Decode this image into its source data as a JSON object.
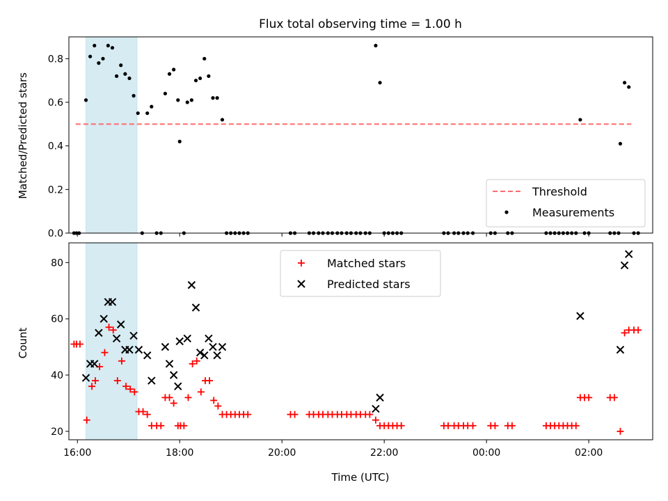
{
  "figure": {
    "title": "Flux total observing time = 1.00 h",
    "xlabel": "Time (UTC)",
    "xticks": [
      "16:00",
      "18:00",
      "20:00",
      "22:00",
      "00:00",
      "02:00"
    ]
  },
  "colors": {
    "threshold": "#ff6b6b",
    "measurement": "#000000",
    "matched": "#ff0000",
    "predicted": "#000000",
    "band": "#add8e6"
  },
  "chart_data": [
    {
      "type": "scatter",
      "ylabel": "Matched/Predicted stars",
      "xlim": [
        "15:50",
        "03:15"
      ],
      "ylim": [
        0,
        0.9
      ],
      "yticks": [
        "0.0",
        "0.2",
        "0.4",
        "0.6",
        "0.8"
      ],
      "highlight_interval": [
        "16:10",
        "17:10"
      ],
      "legend_position": "lower-right",
      "threshold": {
        "name": "Threshold",
        "style": "dashed",
        "y": 0.5,
        "x_start": "15:58",
        "x_end": "02:50"
      },
      "series": [
        {
          "name": "Measurements",
          "points": [
            [
              "15:56",
              0
            ],
            [
              "15:59",
              0
            ],
            [
              "16:02",
              0
            ],
            [
              "16:10",
              0.61
            ],
            [
              "16:15",
              0.81
            ],
            [
              "16:20",
              0.86
            ],
            [
              "16:25",
              0.78
            ],
            [
              "16:30",
              0.8
            ],
            [
              "16:36",
              0.86
            ],
            [
              "16:41",
              0.85
            ],
            [
              "16:46",
              0.72
            ],
            [
              "16:51",
              0.77
            ],
            [
              "16:56",
              0.73
            ],
            [
              "17:01",
              0.71
            ],
            [
              "17:06",
              0.63
            ],
            [
              "17:11",
              0.55
            ],
            [
              "17:16",
              0
            ],
            [
              "17:22",
              0.55
            ],
            [
              "17:27",
              0.58
            ],
            [
              "17:33",
              0
            ],
            [
              "17:38",
              0
            ],
            [
              "17:43",
              0.64
            ],
            [
              "17:48",
              0.73
            ],
            [
              "17:53",
              0.75
            ],
            [
              "17:58",
              0.61
            ],
            [
              "18:00",
              0.42
            ],
            [
              "18:05",
              0
            ],
            [
              "18:09",
              0.6
            ],
            [
              "18:14",
              0.61
            ],
            [
              "18:19",
              0.7
            ],
            [
              "18:24",
              0.71
            ],
            [
              "18:29",
              0.8
            ],
            [
              "18:34",
              0.72
            ],
            [
              "18:39",
              0.62
            ],
            [
              "18:44",
              0.62
            ],
            [
              "18:50",
              0.52
            ],
            [
              "18:55",
              0
            ],
            [
              "19:00",
              0
            ],
            [
              "19:05",
              0
            ],
            [
              "19:10",
              0
            ],
            [
              "19:15",
              0
            ],
            [
              "19:20",
              0
            ],
            [
              "20:10",
              0
            ],
            [
              "20:15",
              0
            ],
            [
              "20:32",
              0
            ],
            [
              "20:37",
              0
            ],
            [
              "20:43",
              0
            ],
            [
              "20:48",
              0
            ],
            [
              "20:54",
              0
            ],
            [
              "20:59",
              0
            ],
            [
              "21:05",
              0
            ],
            [
              "21:10",
              0
            ],
            [
              "21:16",
              0
            ],
            [
              "21:21",
              0
            ],
            [
              "21:27",
              0
            ],
            [
              "21:32",
              0
            ],
            [
              "21:38",
              0
            ],
            [
              "21:43",
              0
            ],
            [
              "21:50",
              0.86
            ],
            [
              "21:55",
              0.69
            ],
            [
              "22:00",
              0
            ],
            [
              "22:05",
              0
            ],
            [
              "22:10",
              0
            ],
            [
              "22:15",
              0
            ],
            [
              "22:20",
              0
            ],
            [
              "23:10",
              0
            ],
            [
              "23:15",
              0
            ],
            [
              "23:22",
              0
            ],
            [
              "23:27",
              0
            ],
            [
              "23:33",
              0
            ],
            [
              "23:38",
              0
            ],
            [
              "23:44",
              0
            ],
            [
              "00:05",
              0
            ],
            [
              "00:10",
              0
            ],
            [
              "00:25",
              0
            ],
            [
              "00:30",
              0
            ],
            [
              "01:10",
              0
            ],
            [
              "01:15",
              0
            ],
            [
              "01:20",
              0
            ],
            [
              "01:25",
              0
            ],
            [
              "01:30",
              0
            ],
            [
              "01:35",
              0
            ],
            [
              "01:40",
              0
            ],
            [
              "01:45",
              0
            ],
            [
              "01:50",
              0.52
            ],
            [
              "01:55",
              0
            ],
            [
              "02:00",
              0
            ],
            [
              "02:25",
              0
            ],
            [
              "02:30",
              0
            ],
            [
              "02:35",
              0
            ],
            [
              "02:37",
              0.41
            ],
            [
              "02:42",
              0.69
            ],
            [
              "02:47",
              0.67
            ],
            [
              "02:53",
              0
            ],
            [
              "02:58",
              0
            ]
          ]
        }
      ]
    },
    {
      "type": "scatter",
      "ylabel": "Count",
      "xlim": [
        "15:50",
        "03:15"
      ],
      "ylim": [
        17,
        87
      ],
      "yticks": [
        "20",
        "40",
        "60",
        "80"
      ],
      "highlight_interval": [
        "16:10",
        "17:10"
      ],
      "legend_position": "upper-center",
      "series": [
        {
          "name": "Matched stars",
          "marker": "plus",
          "points": [
            [
              "15:56",
              51
            ],
            [
              "15:59",
              51
            ],
            [
              "16:03",
              51
            ],
            [
              "16:11",
              24
            ],
            [
              "16:17",
              36
            ],
            [
              "16:21",
              38
            ],
            [
              "16:26",
              43
            ],
            [
              "16:32",
              48
            ],
            [
              "16:37",
              57
            ],
            [
              "16:42",
              56
            ],
            [
              "16:47",
              38
            ],
            [
              "16:52",
              45
            ],
            [
              "16:57",
              36
            ],
            [
              "17:02",
              35
            ],
            [
              "17:07",
              34
            ],
            [
              "17:12",
              27
            ],
            [
              "17:17",
              27
            ],
            [
              "17:22",
              26
            ],
            [
              "17:27",
              22
            ],
            [
              "17:33",
              22
            ],
            [
              "17:38",
              22
            ],
            [
              "17:43",
              32
            ],
            [
              "17:48",
              32
            ],
            [
              "17:53",
              30
            ],
            [
              "17:58",
              22
            ],
            [
              "18:01",
              22
            ],
            [
              "18:05",
              22
            ],
            [
              "18:10",
              32
            ],
            [
              "18:15",
              44
            ],
            [
              "18:20",
              45
            ],
            [
              "18:25",
              34
            ],
            [
              "18:30",
              38
            ],
            [
              "18:35",
              38
            ],
            [
              "18:40",
              31
            ],
            [
              "18:45",
              29
            ],
            [
              "18:50",
              26
            ],
            [
              "18:55",
              26
            ],
            [
              "19:00",
              26
            ],
            [
              "19:05",
              26
            ],
            [
              "19:10",
              26
            ],
            [
              "19:15",
              26
            ],
            [
              "19:20",
              26
            ],
            [
              "20:10",
              26
            ],
            [
              "20:15",
              26
            ],
            [
              "20:32",
              26
            ],
            [
              "20:37",
              26
            ],
            [
              "20:43",
              26
            ],
            [
              "20:48",
              26
            ],
            [
              "20:54",
              26
            ],
            [
              "20:59",
              26
            ],
            [
              "21:05",
              26
            ],
            [
              "21:10",
              26
            ],
            [
              "21:16",
              26
            ],
            [
              "21:21",
              26
            ],
            [
              "21:27",
              26
            ],
            [
              "21:32",
              26
            ],
            [
              "21:38",
              26
            ],
            [
              "21:43",
              26
            ],
            [
              "21:50",
              24
            ],
            [
              "21:55",
              22
            ],
            [
              "22:00",
              22
            ],
            [
              "22:05",
              22
            ],
            [
              "22:10",
              22
            ],
            [
              "22:15",
              22
            ],
            [
              "22:20",
              22
            ],
            [
              "23:10",
              22
            ],
            [
              "23:15",
              22
            ],
            [
              "23:22",
              22
            ],
            [
              "23:27",
              22
            ],
            [
              "23:33",
              22
            ],
            [
              "23:38",
              22
            ],
            [
              "23:44",
              22
            ],
            [
              "00:05",
              22
            ],
            [
              "00:10",
              22
            ],
            [
              "00:25",
              22
            ],
            [
              "00:30",
              22
            ],
            [
              "01:10",
              22
            ],
            [
              "01:15",
              22
            ],
            [
              "01:20",
              22
            ],
            [
              "01:25",
              22
            ],
            [
              "01:30",
              22
            ],
            [
              "01:35",
              22
            ],
            [
              "01:40",
              22
            ],
            [
              "01:45",
              22
            ],
            [
              "01:50",
              32
            ],
            [
              "01:55",
              32
            ],
            [
              "02:00",
              32
            ],
            [
              "02:25",
              32
            ],
            [
              "02:30",
              32
            ],
            [
              "02:37",
              20
            ],
            [
              "02:42",
              55
            ],
            [
              "02:47",
              56
            ],
            [
              "02:53",
              56
            ],
            [
              "02:58",
              56
            ]
          ]
        },
        {
          "name": "Predicted stars",
          "marker": "x",
          "points": [
            [
              "16:10",
              39
            ],
            [
              "16:15",
              44
            ],
            [
              "16:20",
              44
            ],
            [
              "16:25",
              55
            ],
            [
              "16:31",
              60
            ],
            [
              "16:36",
              66
            ],
            [
              "16:41",
              66
            ],
            [
              "16:46",
              53
            ],
            [
              "16:51",
              58
            ],
            [
              "16:56",
              49
            ],
            [
              "17:01",
              49
            ],
            [
              "17:06",
              54
            ],
            [
              "17:12",
              49
            ],
            [
              "17:22",
              47
            ],
            [
              "17:27",
              38
            ],
            [
              "17:43",
              50
            ],
            [
              "17:48",
              44
            ],
            [
              "17:53",
              40
            ],
            [
              "17:58",
              36
            ],
            [
              "18:00",
              52
            ],
            [
              "18:09",
              53
            ],
            [
              "18:14",
              72
            ],
            [
              "18:19",
              64
            ],
            [
              "18:24",
              48
            ],
            [
              "18:29",
              47
            ],
            [
              "18:34",
              53
            ],
            [
              "18:39",
              50
            ],
            [
              "18:44",
              47
            ],
            [
              "18:50",
              50
            ],
            [
              "21:50",
              28
            ],
            [
              "21:55",
              32
            ],
            [
              "01:50",
              61
            ],
            [
              "02:37",
              49
            ],
            [
              "02:42",
              79
            ],
            [
              "02:47",
              83
            ]
          ]
        }
      ]
    }
  ]
}
